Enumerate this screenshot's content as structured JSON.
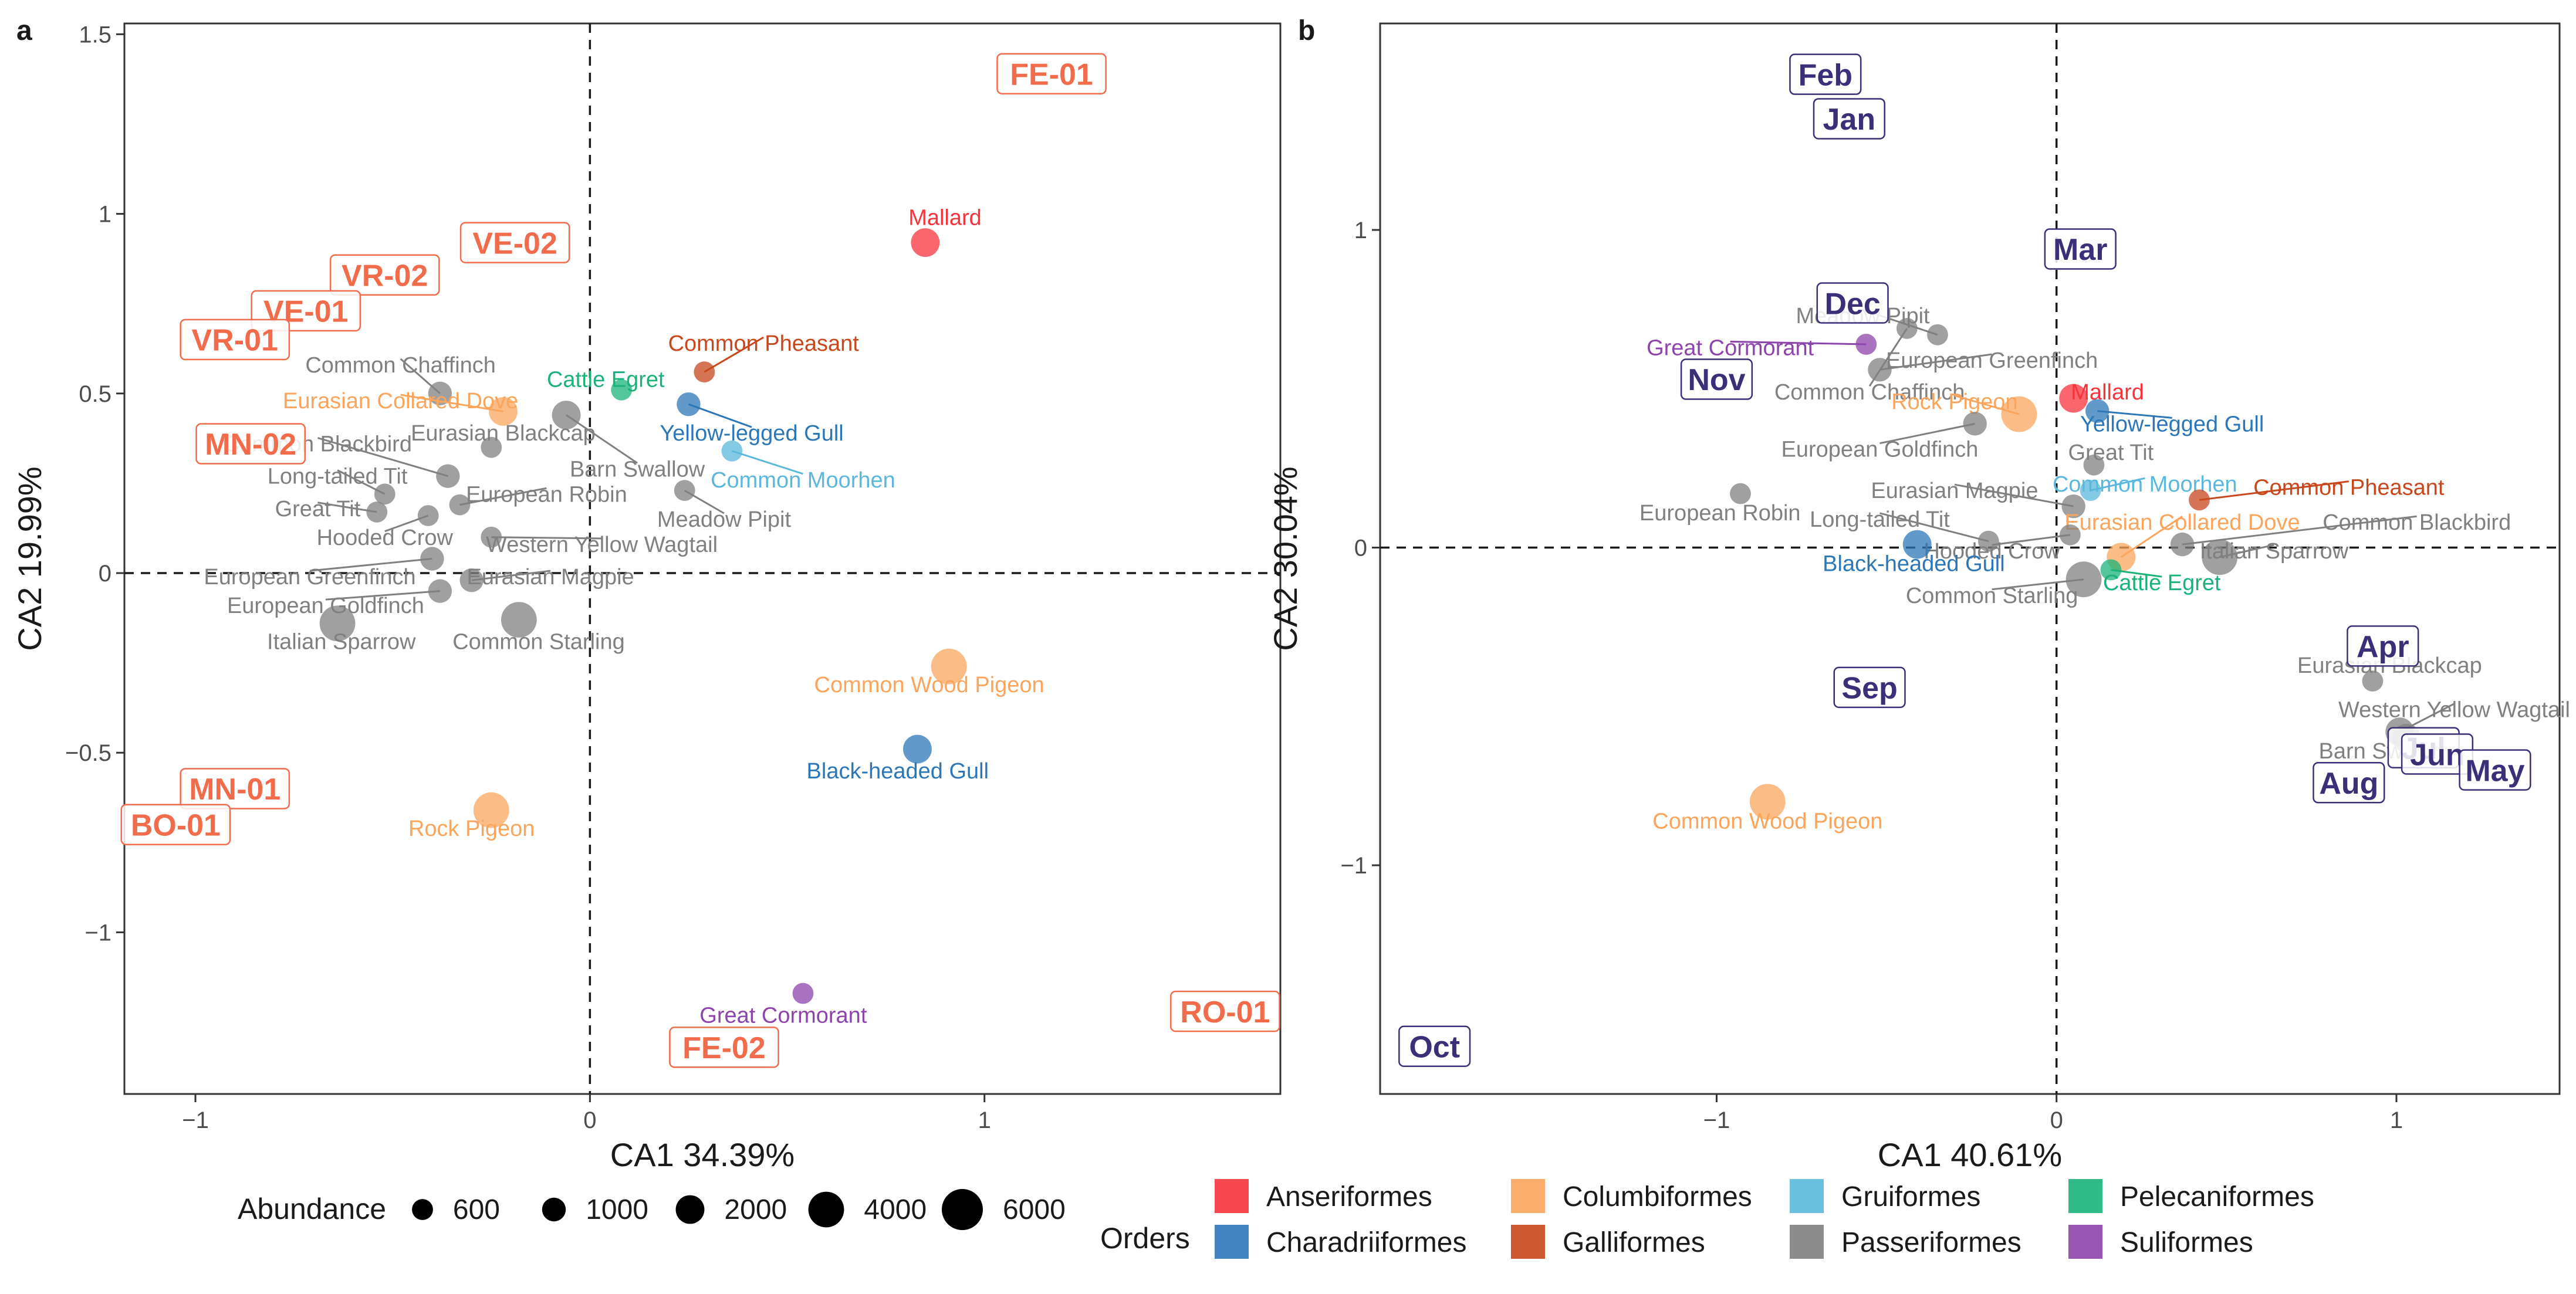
{
  "figure": {
    "panel_a_label": "a",
    "panel_b_label": "b"
  },
  "colors": {
    "Anseriformes": "#f8333c",
    "Charadriiformes": "#2c77b8",
    "Columbiformes": "#fba55c",
    "Gallicolor": "#c8471c",
    "Galliformes": "#c8471c",
    "Gruiformes": "#5bb8dc",
    "Passeriformes": "#808080",
    "Pelecaniformes": "#19b37a",
    "Suliformes": "#8e44ad",
    "site_label": "#f26b4b",
    "month_label": "#3d2e7a"
  },
  "chart_data": [
    {
      "type": "scatter",
      "panel": "a",
      "xlabel": "CA1 34.39%",
      "ylabel": "CA2 19.99%",
      "xlim": [
        -1.18,
        1.75
      ],
      "ylim": [
        -1.45,
        1.53
      ],
      "xticks": [
        {
          "v": -1,
          "t": "−1"
        },
        {
          "v": 0,
          "t": "0"
        },
        {
          "v": 1,
          "t": "1"
        }
      ],
      "yticks": [
        {
          "v": -1,
          "t": "−1"
        },
        {
          "v": -0.5,
          "t": "−0.5"
        },
        {
          "v": 0,
          "t": "0"
        },
        {
          "v": 0.5,
          "t": "0.5"
        },
        {
          "v": 1,
          "t": "1"
        },
        {
          "v": 1.5,
          "t": "1.5"
        }
      ],
      "species": [
        {
          "name": "Mallard",
          "order": "Anseriformes",
          "x": 0.85,
          "y": 0.92,
          "abundance": 2000,
          "lx": 0.9,
          "ly": 0.99
        },
        {
          "name": "Common Pheasant",
          "order": "Galliformes",
          "x": 0.29,
          "y": 0.56,
          "abundance": 600,
          "lx": 0.44,
          "ly": 0.64
        },
        {
          "name": "Cattle Egret",
          "order": "Pelecaniformes",
          "x": 0.08,
          "y": 0.51,
          "abundance": 600,
          "lx": 0.04,
          "ly": 0.54
        },
        {
          "name": "Yellow-legged Gull",
          "order": "Charadriiformes",
          "x": 0.25,
          "y": 0.47,
          "abundance": 1000,
          "lx": 0.41,
          "ly": 0.39
        },
        {
          "name": "Common Moorhen",
          "order": "Gruiformes",
          "x": 0.36,
          "y": 0.34,
          "abundance": 600,
          "lx": 0.54,
          "ly": 0.26
        },
        {
          "name": "Meadow Pipit",
          "order": "Passeriformes",
          "x": 0.24,
          "y": 0.23,
          "abundance": 600,
          "lx": 0.34,
          "ly": 0.15
        },
        {
          "name": "Common Chaffinch",
          "order": "Passeriformes",
          "x": -0.38,
          "y": 0.5,
          "abundance": 1000,
          "lx": -0.48,
          "ly": 0.58
        },
        {
          "name": "Eurasian Collared Dove",
          "order": "Columbiformes",
          "x": -0.22,
          "y": 0.45,
          "abundance": 2000,
          "lx": -0.48,
          "ly": 0.48
        },
        {
          "name": "Barn Swallow",
          "order": "Passeriformes",
          "x": -0.06,
          "y": 0.44,
          "abundance": 2000,
          "lx": 0.12,
          "ly": 0.29
        },
        {
          "name": "Eurasian Blackcap",
          "order": "Passeriformes",
          "x": -0.25,
          "y": 0.35,
          "abundance": 600,
          "lx": -0.22,
          "ly": 0.39
        },
        {
          "name": "Common Blackbird",
          "order": "Passeriformes",
          "x": -0.36,
          "y": 0.27,
          "abundance": 1000,
          "lx": -0.69,
          "ly": 0.36
        },
        {
          "name": "Long-tailed Tit",
          "order": "Passeriformes",
          "x": -0.52,
          "y": 0.22,
          "abundance": 600,
          "lx": -0.64,
          "ly": 0.27
        },
        {
          "name": "European Robin",
          "order": "Passeriformes",
          "x": -0.33,
          "y": 0.19,
          "abundance": 600,
          "lx": -0.11,
          "ly": 0.22
        },
        {
          "name": "Great Tit",
          "order": "Passeriformes",
          "x": -0.54,
          "y": 0.17,
          "abundance": 600,
          "lx": -0.69,
          "ly": 0.18
        },
        {
          "name": "Hooded Crow",
          "order": "Passeriformes",
          "x": -0.41,
          "y": 0.16,
          "abundance": 600,
          "lx": -0.52,
          "ly": 0.1
        },
        {
          "name": "Western Yellow Wagtail",
          "order": "Passeriformes",
          "x": -0.25,
          "y": 0.1,
          "abundance": 600,
          "lx": 0.03,
          "ly": 0.08
        },
        {
          "name": "European Greenfinch",
          "order": "Passeriformes",
          "x": -0.4,
          "y": 0.04,
          "abundance": 1000,
          "lx": -0.71,
          "ly": -0.01
        },
        {
          "name": "Eurasian Magpie",
          "order": "Passeriformes",
          "x": -0.3,
          "y": -0.02,
          "abundance": 1000,
          "lx": -0.1,
          "ly": -0.01
        },
        {
          "name": "European Goldfinch",
          "order": "Passeriformes",
          "x": -0.38,
          "y": -0.05,
          "abundance": 1000,
          "lx": -0.67,
          "ly": -0.09
        },
        {
          "name": "Italian Sparrow",
          "order": "Passeriformes",
          "x": -0.64,
          "y": -0.14,
          "abundance": 4000,
          "lx": -0.63,
          "ly": -0.19
        },
        {
          "name": "Common Starling",
          "order": "Passeriformes",
          "x": -0.18,
          "y": -0.13,
          "abundance": 4000,
          "lx": -0.13,
          "ly": -0.19
        },
        {
          "name": "Common Wood Pigeon",
          "order": "Columbiformes",
          "x": 0.91,
          "y": -0.26,
          "abundance": 4000,
          "lx": 0.86,
          "ly": -0.31
        },
        {
          "name": "Black-headed Gull",
          "order": "Charadriiformes",
          "x": 0.83,
          "y": -0.49,
          "abundance": 2000,
          "lx": 0.78,
          "ly": -0.55
        },
        {
          "name": "Rock Pigeon",
          "order": "Columbiformes",
          "x": -0.25,
          "y": -0.66,
          "abundance": 4000,
          "lx": -0.3,
          "ly": -0.71
        },
        {
          "name": "Great Cormorant",
          "order": "Suliformes",
          "x": 0.54,
          "y": -1.17,
          "abundance": 600,
          "lx": 0.49,
          "ly": -1.23
        }
      ],
      "sites": [
        {
          "name": "FE-01",
          "x": 1.17,
          "y": 1.39
        },
        {
          "name": "VE-02",
          "x": -0.19,
          "y": 0.92
        },
        {
          "name": "VR-02",
          "x": -0.52,
          "y": 0.83
        },
        {
          "name": "VE-01",
          "x": -0.72,
          "y": 0.73
        },
        {
          "name": "VR-01",
          "x": -0.9,
          "y": 0.65
        },
        {
          "name": "MN-02",
          "x": -0.86,
          "y": 0.36
        },
        {
          "name": "MN-01",
          "x": -0.9,
          "y": -0.6
        },
        {
          "name": "BO-01",
          "x": -1.05,
          "y": -0.7
        },
        {
          "name": "RO-01",
          "x": 1.61,
          "y": -1.22
        },
        {
          "name": "FE-02",
          "x": 0.34,
          "y": -1.32
        }
      ]
    },
    {
      "type": "scatter",
      "panel": "b",
      "xlabel": "CA1 40.61%",
      "ylabel": "CA2 30.04%",
      "xlim": [
        -1.99,
        1.48
      ],
      "ylim": [
        -1.72,
        1.65
      ],
      "xticks": [
        {
          "v": -1,
          "t": "−1"
        },
        {
          "v": 0,
          "t": "0"
        },
        {
          "v": 1,
          "t": "1"
        }
      ],
      "yticks": [
        {
          "v": -1,
          "t": "−1"
        },
        {
          "v": 0,
          "t": "0"
        },
        {
          "v": 1,
          "t": "1"
        }
      ],
      "species": [
        {
          "name": "Meadow Pipit",
          "order": "Passeriformes",
          "x": -0.35,
          "y": 0.67,
          "abundance": 600,
          "lx": -0.57,
          "ly": 0.73
        },
        {
          "name": "Great Cormorant",
          "order": "Suliformes",
          "x": -0.56,
          "y": 0.64,
          "abundance": 600,
          "lx": -0.96,
          "ly": 0.63
        },
        {
          "name": "European Greenfinch",
          "order": "Passeriformes",
          "x": -0.52,
          "y": 0.56,
          "abundance": 1000,
          "lx": -0.19,
          "ly": 0.59
        },
        {
          "name": "Common Chaffinch",
          "order": "Passeriformes",
          "x": -0.44,
          "y": 0.69,
          "abundance": 600,
          "lx": -0.55,
          "ly": 0.49
        },
        {
          "name": "Rock Pigeon",
          "order": "Columbiformes",
          "x": -0.11,
          "y": 0.42,
          "abundance": 4000,
          "lx": -0.3,
          "ly": 0.46
        },
        {
          "name": "Mallard",
          "order": "Anseriformes",
          "x": 0.05,
          "y": 0.47,
          "abundance": 2000,
          "lx": 0.15,
          "ly": 0.49
        },
        {
          "name": "Yellow-legged Gull",
          "order": "Charadriiformes",
          "x": 0.12,
          "y": 0.43,
          "abundance": 1000,
          "lx": 0.34,
          "ly": 0.39
        },
        {
          "name": "European Goldfinch",
          "order": "Passeriformes",
          "x": -0.24,
          "y": 0.39,
          "abundance": 1000,
          "lx": -0.52,
          "ly": 0.31
        },
        {
          "name": "Great Tit",
          "order": "Passeriformes",
          "x": 0.11,
          "y": 0.26,
          "abundance": 600,
          "lx": 0.16,
          "ly": 0.3
        },
        {
          "name": "Eurasian Magpie",
          "order": "Passeriformes",
          "x": 0.05,
          "y": 0.13,
          "abundance": 1000,
          "lx": -0.3,
          "ly": 0.18
        },
        {
          "name": "Common Moorhen",
          "order": "Gruiformes",
          "x": 0.1,
          "y": 0.18,
          "abundance": 600,
          "lx": 0.26,
          "ly": 0.2
        },
        {
          "name": "Common Pheasant",
          "order": "Galliformes",
          "x": 0.42,
          "y": 0.15,
          "abundance": 600,
          "lx": 0.86,
          "ly": 0.19
        },
        {
          "name": "European Robin",
          "order": "Passeriformes",
          "x": -0.93,
          "y": 0.17,
          "abundance": 600,
          "lx": -0.99,
          "ly": 0.11
        },
        {
          "name": "Long-tailed Tit",
          "order": "Passeriformes",
          "x": -0.2,
          "y": 0.02,
          "abundance": 600,
          "lx": -0.52,
          "ly": 0.09
        },
        {
          "name": "Eurasian Collared Dove",
          "order": "Columbiformes",
          "x": 0.19,
          "y": -0.03,
          "abundance": 2000,
          "lx": 0.37,
          "ly": 0.08
        },
        {
          "name": "Common Blackbird",
          "order": "Passeriformes",
          "x": 0.37,
          "y": 0.01,
          "abundance": 1000,
          "lx": 1.06,
          "ly": 0.08
        },
        {
          "name": "Hooded Crow",
          "order": "Passeriformes",
          "x": 0.04,
          "y": 0.04,
          "abundance": 600,
          "lx": -0.19,
          "ly": -0.01
        },
        {
          "name": "Italian Sparrow",
          "order": "Passeriformes",
          "x": 0.48,
          "y": -0.03,
          "abundance": 4000,
          "lx": 0.64,
          "ly": -0.01
        },
        {
          "name": "Black-headed Gull",
          "order": "Charadriiformes",
          "x": -0.41,
          "y": 0.01,
          "abundance": 2000,
          "lx": -0.42,
          "ly": -0.05
        },
        {
          "name": "Cattle Egret",
          "order": "Pelecaniformes",
          "x": 0.16,
          "y": -0.07,
          "abundance": 600,
          "lx": 0.31,
          "ly": -0.11
        },
        {
          "name": "Common Starling",
          "order": "Passeriformes",
          "x": 0.08,
          "y": -0.1,
          "abundance": 4000,
          "lx": -0.19,
          "ly": -0.15
        },
        {
          "name": "Eurasian Blackcap",
          "order": "Passeriformes",
          "x": 0.93,
          "y": -0.42,
          "abundance": 600,
          "lx": 0.98,
          "ly": -0.37
        },
        {
          "name": "Western Yellow Wagtail",
          "order": "Passeriformes",
          "x": 1.01,
          "y": -0.58,
          "abundance": 2000,
          "lx": 1.17,
          "ly": -0.51
        },
        {
          "name": "Barn Swallow",
          "order": "Passeriformes",
          "x": 1.03,
          "y": -0.6,
          "abundance": 2000,
          "lx": 0.97,
          "ly": -0.64
        },
        {
          "name": "Common Wood Pigeon",
          "order": "Columbiformes",
          "x": -0.85,
          "y": -0.8,
          "abundance": 4000,
          "lx": -0.85,
          "ly": -0.86
        }
      ],
      "months": [
        {
          "name": "Feb",
          "x": -0.68,
          "y": 1.49
        },
        {
          "name": "Jan",
          "x": -0.61,
          "y": 1.35
        },
        {
          "name": "Mar",
          "x": 0.07,
          "y": 0.94
        },
        {
          "name": "Dec",
          "x": -0.6,
          "y": 0.77
        },
        {
          "name": "Nov",
          "x": -1.0,
          "y": 0.53
        },
        {
          "name": "Sep",
          "x": -0.55,
          "y": -0.44
        },
        {
          "name": "Apr",
          "x": 0.96,
          "y": -0.31
        },
        {
          "name": "Jul",
          "x": 1.08,
          "y": -0.63
        },
        {
          "name": "Jun",
          "x": 1.12,
          "y": -0.65
        },
        {
          "name": "May",
          "x": 1.29,
          "y": -0.7
        },
        {
          "name": "Aug",
          "x": 0.86,
          "y": -0.74
        },
        {
          "name": "Oct",
          "x": -1.83,
          "y": -1.57
        }
      ]
    }
  ],
  "legend": {
    "abundance_title": "Abundance",
    "abundance": [
      {
        "label": "600",
        "value": 600
      },
      {
        "label": "1000",
        "value": 1000
      },
      {
        "label": "2000",
        "value": 2000
      },
      {
        "label": "4000",
        "value": 4000
      },
      {
        "label": "6000",
        "value": 6000
      }
    ],
    "orders_title": "Orders",
    "orders": [
      "Anseriformes",
      "Charadriiformes",
      "Columbiformes",
      "Galliformes",
      "Gruiformes",
      "Passeriformes",
      "Pelecaniformes",
      "Suliformes"
    ]
  }
}
